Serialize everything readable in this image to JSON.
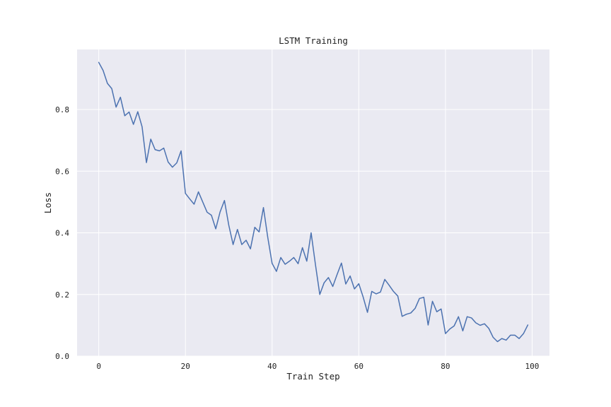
{
  "chart_data": {
    "type": "line",
    "title": "LSTM Training",
    "xlabel": "Train Step",
    "ylabel": "Loss",
    "xlim": [
      -5,
      104
    ],
    "ylim": [
      0.0,
      0.995
    ],
    "xticks": [
      0,
      20,
      40,
      60,
      80,
      100
    ],
    "xtick_labels": [
      "0",
      "20",
      "40",
      "60",
      "80",
      "100"
    ],
    "yticks": [
      0.0,
      0.2,
      0.4,
      0.6,
      0.8
    ],
    "ytick_labels": [
      "0.0",
      "0.2",
      "0.4",
      "0.6",
      "0.8"
    ],
    "grid": true,
    "legend": false,
    "colors": {
      "background": "#ffffff",
      "plot_background": "#eaeaf2",
      "grid": "#ffffff",
      "line": "#4c72b0"
    },
    "series": [
      {
        "name": "Loss",
        "x": [
          0,
          1,
          2,
          3,
          4,
          5,
          6,
          7,
          8,
          9,
          10,
          11,
          12,
          13,
          14,
          15,
          16,
          17,
          18,
          19,
          20,
          21,
          22,
          23,
          24,
          25,
          26,
          27,
          28,
          29,
          30,
          31,
          32,
          33,
          34,
          35,
          36,
          37,
          38,
          39,
          40,
          41,
          42,
          43,
          44,
          45,
          46,
          47,
          48,
          49,
          50,
          51,
          52,
          53,
          54,
          55,
          56,
          57,
          58,
          59,
          60,
          61,
          62,
          63,
          64,
          65,
          66,
          67,
          68,
          69,
          70,
          71,
          72,
          73,
          74,
          75,
          76,
          77,
          78,
          79,
          80,
          81,
          82,
          83,
          84,
          85,
          86,
          87,
          88,
          89,
          90,
          91,
          92,
          93,
          94,
          95,
          96,
          97,
          98,
          99
        ],
        "values": [
          0.953,
          0.927,
          0.885,
          0.868,
          0.808,
          0.84,
          0.78,
          0.792,
          0.752,
          0.793,
          0.744,
          0.628,
          0.704,
          0.67,
          0.666,
          0.675,
          0.63,
          0.613,
          0.627,
          0.666,
          0.528,
          0.51,
          0.493,
          0.533,
          0.5,
          0.467,
          0.457,
          0.413,
          0.468,
          0.505,
          0.425,
          0.362,
          0.411,
          0.362,
          0.376,
          0.348,
          0.418,
          0.403,
          0.482,
          0.385,
          0.301,
          0.275,
          0.32,
          0.298,
          0.308,
          0.32,
          0.3,
          0.352,
          0.308,
          0.4,
          0.297,
          0.2,
          0.238,
          0.255,
          0.226,
          0.265,
          0.302,
          0.234,
          0.26,
          0.218,
          0.235,
          0.192,
          0.142,
          0.21,
          0.202,
          0.208,
          0.249,
          0.23,
          0.21,
          0.195,
          0.129,
          0.136,
          0.14,
          0.155,
          0.187,
          0.191,
          0.101,
          0.178,
          0.144,
          0.153,
          0.073,
          0.088,
          0.098,
          0.128,
          0.082,
          0.128,
          0.124,
          0.108,
          0.1,
          0.105,
          0.09,
          0.061,
          0.047,
          0.057,
          0.052,
          0.068,
          0.068,
          0.057,
          0.073,
          0.101
        ]
      }
    ]
  }
}
